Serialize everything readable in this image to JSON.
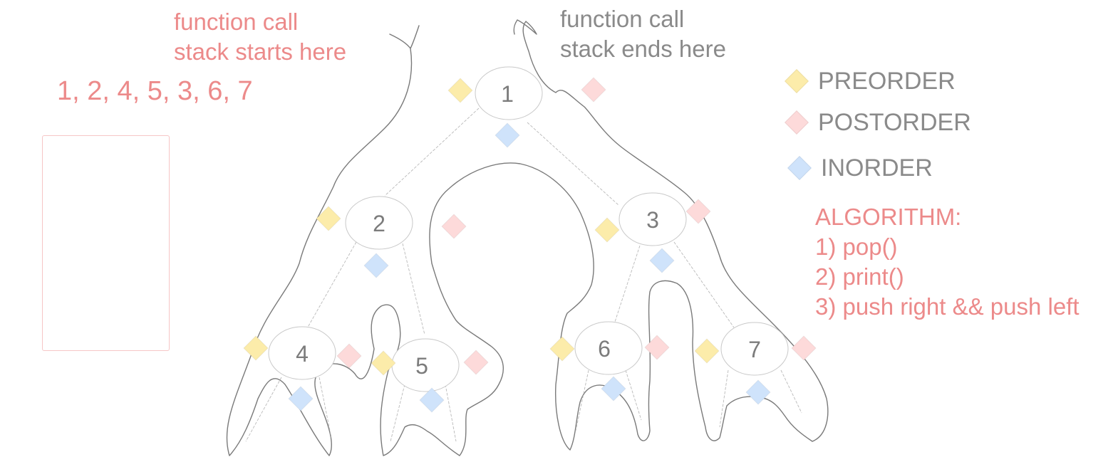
{
  "annotations": {
    "start": [
      "function call",
      "stack starts here"
    ],
    "end": [
      "function call",
      "stack ends here"
    ],
    "sequence": "1, 2, 4, 5, 3, 6, 7"
  },
  "legend": [
    {
      "label": "PREORDER",
      "color": "#fcecaa"
    },
    {
      "label": "POSTORDER",
      "color": "#fddada"
    },
    {
      "label": "INORDER",
      "color": "#cfe3fb"
    }
  ],
  "algorithm": {
    "title": "ALGORITHM:",
    "steps": [
      "1) pop()",
      "2) print()",
      "3) push right && push left"
    ]
  },
  "tree": {
    "nodes": [
      {
        "id": "1",
        "label": "1"
      },
      {
        "id": "2",
        "label": "2"
      },
      {
        "id": "3",
        "label": "3"
      },
      {
        "id": "4",
        "label": "4"
      },
      {
        "id": "5",
        "label": "5"
      },
      {
        "id": "6",
        "label": "6"
      },
      {
        "id": "7",
        "label": "7"
      }
    ],
    "edges": [
      [
        "1",
        "2"
      ],
      [
        "1",
        "3"
      ],
      [
        "2",
        "4"
      ],
      [
        "2",
        "5"
      ],
      [
        "3",
        "6"
      ],
      [
        "3",
        "7"
      ]
    ]
  },
  "colors": {
    "preorder": "#fcecaa",
    "postorder": "#fddada",
    "inorder": "#cfe3fb",
    "accent": "#ec8a8a",
    "text": "#8a8a8a"
  }
}
